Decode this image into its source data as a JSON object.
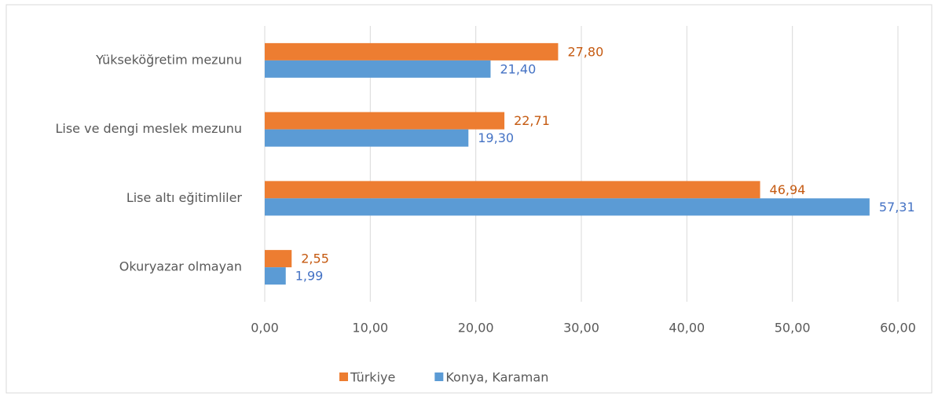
{
  "chart_data": {
    "type": "barh",
    "categories": [
      "Yükseköğretim mezunu",
      "Lise ve dengi meslek mezunu",
      "Lise altı eğitimliler",
      "Okuryazar olmayan"
    ],
    "series": [
      {
        "name": "Türkiye",
        "color": "#ed7d31",
        "label_color": "#c55a11",
        "values": [
          27.8,
          22.71,
          46.94,
          2.55
        ],
        "value_labels": [
          "27,80",
          "22,71",
          "46,94",
          "2,55"
        ]
      },
      {
        "name": "Konya, Karaman",
        "color": "#5b9bd5",
        "label_color": "#4472c4",
        "values": [
          21.4,
          19.3,
          57.31,
          1.99
        ],
        "value_labels": [
          "21,40",
          "19,30",
          "57,31",
          "1,99"
        ]
      }
    ],
    "xlim": [
      0,
      60
    ],
    "xticks": [
      {
        "value": 0,
        "label": "0,00"
      },
      {
        "value": 10,
        "label": "10,00"
      },
      {
        "value": 20,
        "label": "20,00"
      },
      {
        "value": 30,
        "label": "30,00"
      },
      {
        "value": 40,
        "label": "40,00"
      },
      {
        "value": 50,
        "label": "50,00"
      },
      {
        "value": 60,
        "label": "60,00"
      }
    ],
    "grid": true,
    "legend": "bottom"
  }
}
